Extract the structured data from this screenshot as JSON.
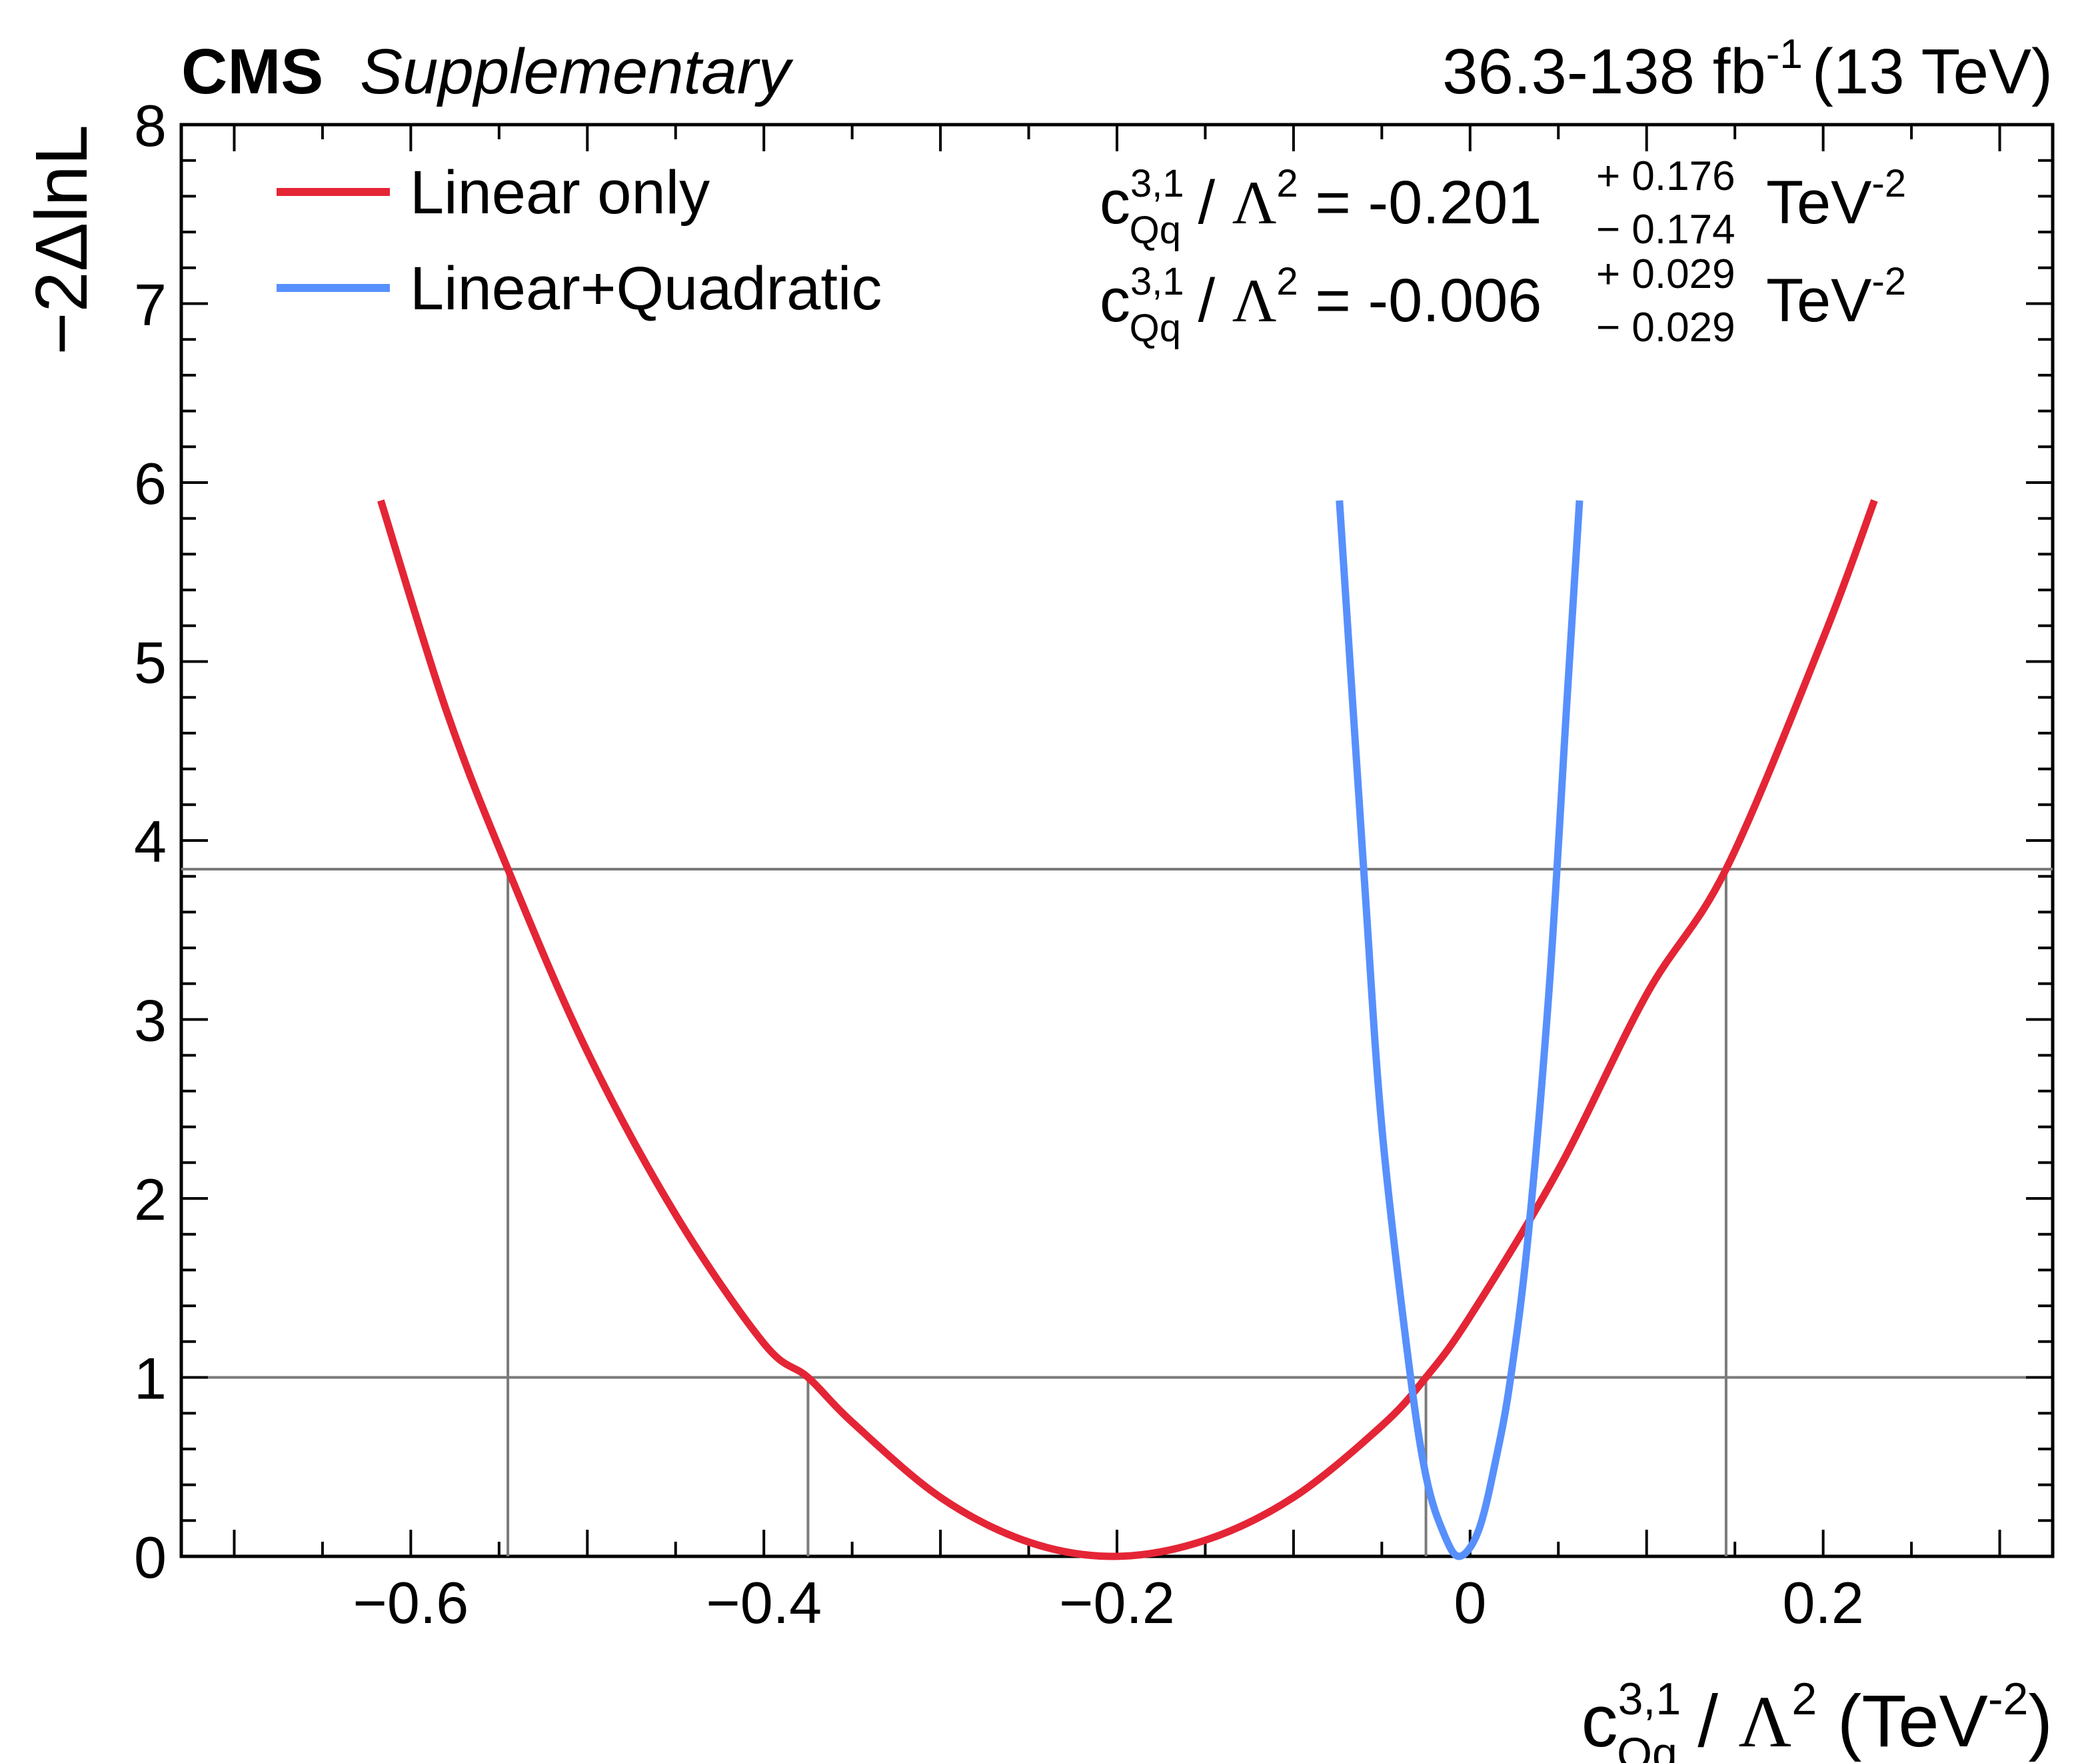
{
  "header": {
    "experiment": "CMS",
    "label": "Supplementary",
    "lumi_value": "36.3-138 fb",
    "lumi_exp": "-1",
    "energy": "(13 TeV)"
  },
  "axes": {
    "x_label": {
      "c": "c",
      "sup": "3,1",
      "sub": "Qq",
      "slash": " / ",
      "lambda": "Λ",
      "lambda_exp": "2",
      "unit_open": " (TeV",
      "unit_exp": "-2",
      "unit_close": ")"
    },
    "y_label": "−2ΔlnL"
  },
  "legend": {
    "items": [
      {
        "label": "Linear only",
        "color": "#e42536"
      },
      {
        "label": "Linear+Quadratic",
        "color": "#5790fc"
      }
    ]
  },
  "results": [
    {
      "c": "c",
      "sup": "3,1",
      "sub": "Qq",
      "slash": " / ",
      "lambda": "Λ",
      "lambda_exp": "2",
      "eq": " = -0.201",
      "up": "+ 0.176",
      "down": "− 0.174",
      "unit": "TeV",
      "unit_exp": "-2",
      "color": "#e42536"
    },
    {
      "c": "c",
      "sup": "3,1",
      "sub": "Qq",
      "slash": " / ",
      "lambda": "Λ",
      "lambda_exp": "2",
      "eq": " = -0.006",
      "up": "+ 0.029",
      "down": "− 0.029",
      "unit": "TeV",
      "unit_exp": "-2",
      "color": "#5790fc"
    }
  ],
  "chart_data": {
    "type": "line",
    "xlim": [
      -0.73,
      0.33
    ],
    "ylim": [
      0,
      8
    ],
    "x_ticks": [
      -0.6,
      -0.4,
      -0.2,
      0,
      0.2
    ],
    "x_tick_labels": [
      "−0.6",
      "−0.4",
      "−0.2",
      "0",
      "0.2"
    ],
    "y_ticks": [
      0,
      1,
      2,
      3,
      4,
      5,
      6,
      7,
      8
    ],
    "y_tick_labels": [
      "0",
      "1",
      "2",
      "3",
      "4",
      "5",
      "6",
      "7",
      "8"
    ],
    "reference_levels": [
      1,
      3.84
    ],
    "series": [
      {
        "name": "Linear only",
        "color": "#e42536",
        "x": [
          -0.617,
          -0.58,
          -0.545,
          -0.5,
          -0.45,
          -0.4,
          -0.375,
          -0.35,
          -0.3,
          -0.25,
          -0.201,
          -0.15,
          -0.1,
          -0.05,
          -0.025,
          0,
          0.05,
          0.1,
          0.145,
          0.2,
          0.229
        ],
        "y": [
          5.9,
          4.73,
          3.84,
          2.82,
          1.91,
          1.19,
          1.0,
          0.75,
          0.33,
          0.08,
          0.0,
          0.09,
          0.33,
          0.73,
          1.0,
          1.34,
          2.16,
          3.14,
          3.84,
          5.13,
          5.9
        ]
      },
      {
        "name": "Linear+Quadratic",
        "color": "#5790fc",
        "x": [
          -0.074,
          -0.06,
          -0.05,
          -0.035,
          -0.025,
          -0.015,
          -0.006,
          0.005,
          0.015,
          0.023,
          0.033,
          0.045,
          0.055,
          0.062
        ],
        "y": [
          5.9,
          3.8,
          2.4,
          1.1,
          0.45,
          0.13,
          0.0,
          0.15,
          0.56,
          1.0,
          1.8,
          3.2,
          4.8,
          5.9
        ]
      }
    ],
    "crossings": {
      "Linear only": {
        "at_1": [
          -0.375,
          -0.025
        ],
        "at_3.84": [
          -0.545,
          0.145
        ]
      }
    }
  }
}
